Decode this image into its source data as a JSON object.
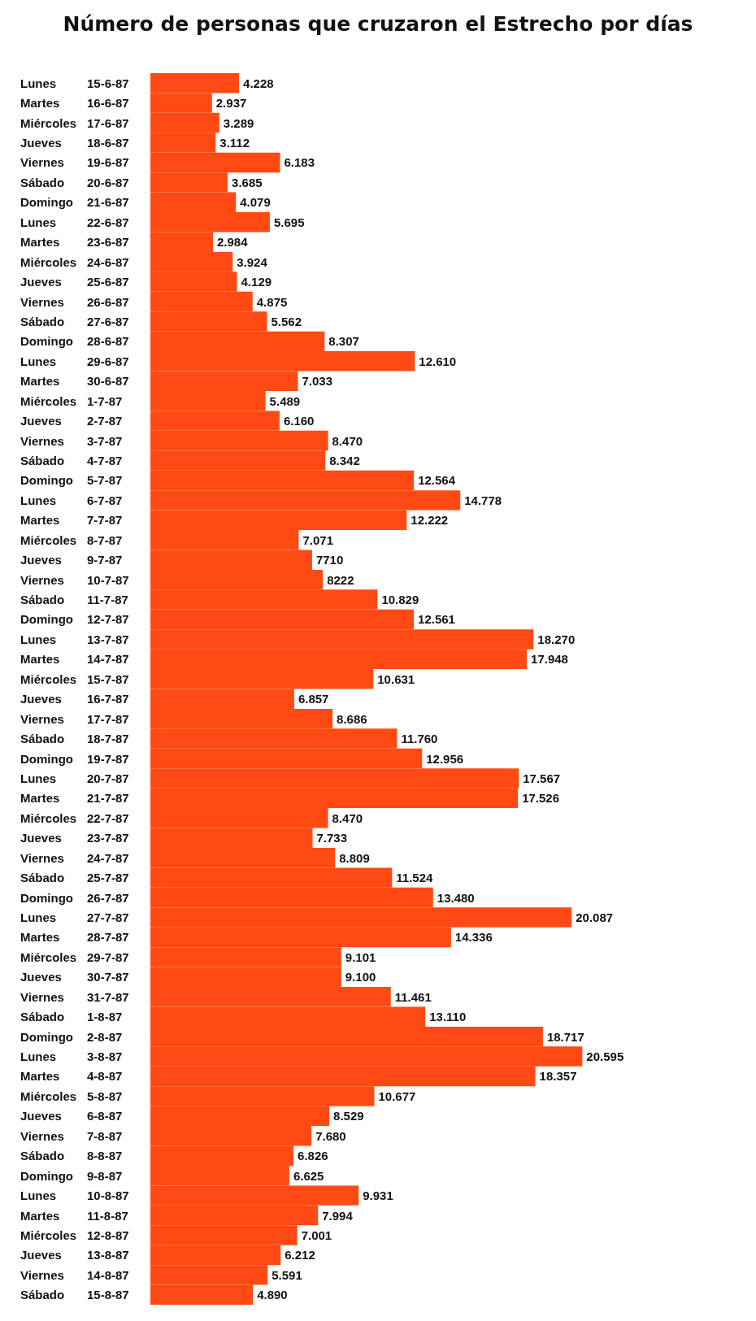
{
  "chart_data": {
    "type": "bar",
    "orientation": "horizontal",
    "title": "Número de personas que cruzaron el Estrecho por días",
    "color": "#ff4a14",
    "categories": [
      "Lunes 15-6-87",
      "Martes 16-6-87",
      "Miércoles 17-6-87",
      "Jueves 18-6-87",
      "Viernes 19-6-87",
      "Sábado 20-6-87",
      "Domingo 21-6-87",
      "Lunes 22-6-87",
      "Martes 23-6-87",
      "Miércoles 24-6-87",
      "Jueves 25-6-87",
      "Viernes 26-6-87",
      "Sábado 27-6-87",
      "Domingo 28-6-87",
      "Lunes 29-6-87",
      "Martes 30-6-87",
      "Miércoles 1-7-87",
      "Jueves 2-7-87",
      "Viernes 3-7-87",
      "Sábado 4-7-87",
      "Domingo 5-7-87",
      "Lunes 6-7-87",
      "Martes 7-7-87",
      "Miércoles 8-7-87",
      "Jueves 9-7-87",
      "Viernes 10-7-87",
      "Sábado 11-7-87",
      "Domingo 12-7-87",
      "Lunes 13-7-87",
      "Martes 14-7-87",
      "Miércoles 15-7-87",
      "Jueves 16-7-87",
      "Viernes 17-7-87",
      "Sábado 18-7-87",
      "Domingo 19-7-87",
      "Lunes 20-7-87",
      "Martes 21-7-87",
      "Miércoles 22-7-87",
      "Jueves 23-7-87",
      "Viernes 24-7-87",
      "Sábado 25-7-87",
      "Domingo 26-7-87",
      "Lunes 27-7-87",
      "Martes 28-7-87",
      "Miércoles 29-7-87",
      "Jueves 30-7-87",
      "Viernes 31-7-87",
      "Sábado 1-8-87",
      "Domingo 2-8-87",
      "Lunes 3-8-87",
      "Martes 4-8-87",
      "Miércoles 5-8-87",
      "Jueves 6-8-87",
      "Viernes 7-8-87",
      "Sábado 8-8-87",
      "Domingo 9-8-87",
      "Lunes 10-8-87",
      "Martes 11-8-87",
      "Miércoles 12-8-87",
      "Jueves 13-8-87",
      "Viernes 14-8-87",
      "Sábado 15-8-87"
    ],
    "values": [
      4228,
      2937,
      3289,
      3112,
      6183,
      3685,
      4079,
      5695,
      2984,
      3924,
      4129,
      4875,
      5562,
      8307,
      12610,
      7033,
      5489,
      6160,
      8470,
      8342,
      12564,
      14778,
      12222,
      7071,
      7710,
      8222,
      10829,
      12561,
      18270,
      17948,
      10631,
      6857,
      8686,
      11760,
      12956,
      17567,
      17526,
      8470,
      7733,
      8809,
      11524,
      13480,
      20087,
      14336,
      9101,
      9100,
      11461,
      13110,
      18717,
      20595,
      18357,
      10677,
      8529,
      7680,
      6826,
      6625,
      9931,
      7994,
      7001,
      6212,
      5591,
      4890
    ],
    "value_labels": [
      "4.228",
      "2.937",
      "3.289",
      "3.112",
      "6.183",
      "3.685",
      "4.079",
      "5.695",
      "2.984",
      "3.924",
      "4.129",
      "4.875",
      "5.562",
      "8.307",
      "12.610",
      "7.033",
      "5.489",
      "6.160",
      "8.470",
      "8.342",
      "12.564",
      "14.778",
      "12.222",
      "7.071",
      "7710",
      "8222",
      "10.829",
      "12.561",
      "18.270",
      "17.948",
      "10.631",
      "6.857",
      "8.686",
      "11.760",
      "12.956",
      "17.567",
      "17.526",
      "8.470",
      "7.733",
      "8.809",
      "11.524",
      "13.480",
      "20.087",
      "14.336",
      "9.101",
      "9.100",
      "11.461",
      "13.110",
      "18.717",
      "20.595",
      "18.357",
      "10.677",
      "8.529",
      "7.680",
      "6.826",
      "6.625",
      "9.931",
      "7.994",
      "7.001",
      "6.212",
      "5.591",
      "4.890"
    ]
  }
}
